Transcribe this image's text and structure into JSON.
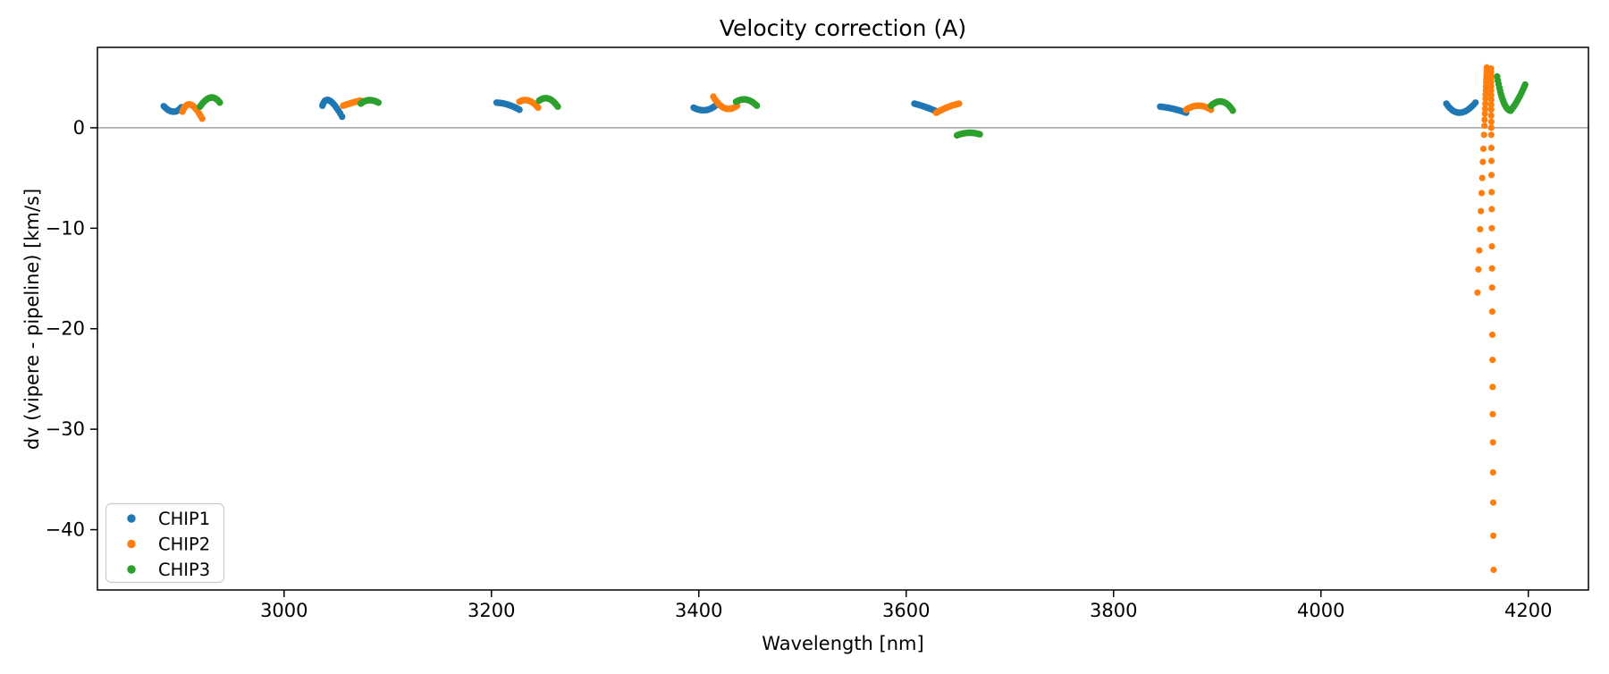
{
  "figure": {
    "title": "Velocity correction (A)",
    "xlabel": "Wavelength [nm]",
    "ylabel": "dv (vipere - pipeline) [km/s]"
  },
  "chart_data": {
    "type": "scatter",
    "title": "Velocity correction (A)",
    "xlabel": "Wavelength [nm]",
    "ylabel": "dv (vipere - pipeline) [km/s]",
    "xlim": [
      2820,
      4258
    ],
    "ylim": [
      -46.0,
      8.0
    ],
    "xticks": [
      3000,
      3200,
      3400,
      3600,
      3800,
      4000,
      4200
    ],
    "yticks": [
      0,
      -10,
      -20,
      -30,
      -40
    ],
    "grid": false,
    "zero_line": {
      "y": 0,
      "color": "#808080"
    },
    "legend": {
      "position": "lower left",
      "entries": [
        {
          "label": "CHIP1",
          "color": "#1f77b4"
        },
        {
          "label": "CHIP2",
          "color": "#ff7f0e"
        },
        {
          "label": "CHIP3",
          "color": "#2ca02c"
        }
      ]
    },
    "series": [
      {
        "name": "CHIP1",
        "color": "#1f77b4",
        "segments": [
          [
            [
              2884,
              2.15
            ],
            [
              2893,
              1.6
            ],
            [
              2901,
              2.05
            ]
          ],
          [
            [
              3037,
              2.2
            ],
            [
              3044,
              2.7
            ],
            [
              3056,
              1.1
            ]
          ],
          [
            [
              3205,
              2.5
            ],
            [
              3216,
              2.3
            ],
            [
              3227,
              1.8
            ]
          ],
          [
            [
              3395,
              2.0
            ],
            [
              3406,
              1.75
            ],
            [
              3416,
              2.2
            ]
          ],
          [
            [
              3608,
              2.4
            ],
            [
              3619,
              2.05
            ],
            [
              3630,
              1.6
            ]
          ],
          [
            [
              3845,
              2.1
            ],
            [
              3857,
              1.9
            ],
            [
              3870,
              1.5
            ]
          ],
          [
            [
              4121,
              2.4
            ],
            [
              4134,
              1.5
            ],
            [
              4149,
              2.5
            ]
          ]
        ],
        "spike_points": []
      },
      {
        "name": "CHIP2",
        "color": "#ff7f0e",
        "segments": [
          [
            [
              2902,
              1.6
            ],
            [
              2910,
              2.3
            ],
            [
              2921,
              0.9
            ]
          ],
          [
            [
              3057,
              2.2
            ],
            [
              3066,
              2.5
            ],
            [
              3074,
              2.7
            ]
          ],
          [
            [
              3227,
              2.6
            ],
            [
              3236,
              2.7
            ],
            [
              3245,
              2.0
            ]
          ],
          [
            [
              3414,
              3.1
            ],
            [
              3425,
              1.95
            ],
            [
              3437,
              2.2
            ]
          ],
          [
            [
              3629,
              1.5
            ],
            [
              3640,
              2.05
            ],
            [
              3651,
              2.4
            ]
          ],
          [
            [
              3870,
              1.8
            ],
            [
              3882,
              2.2
            ],
            [
              3894,
              1.8
            ]
          ]
        ],
        "spike_points": [
          [
            4160.0,
            6.0
          ],
          [
            4159.9,
            5.7
          ],
          [
            4159.8,
            5.4
          ],
          [
            4159.6,
            5.1
          ],
          [
            4159.5,
            4.8
          ],
          [
            4159.4,
            4.5
          ],
          [
            4159.2,
            4.1
          ],
          [
            4159.1,
            3.7
          ],
          [
            4158.9,
            3.3
          ],
          [
            4158.8,
            2.9
          ],
          [
            4158.6,
            2.4
          ],
          [
            4158.4,
            1.9
          ],
          [
            4158.2,
            1.4
          ],
          [
            4157.9,
            0.8
          ],
          [
            4157.7,
            0.2
          ],
          [
            4157.3,
            -0.7
          ],
          [
            4156.7,
            -2.1
          ],
          [
            4156.2,
            -3.4
          ],
          [
            4155.6,
            -5.0
          ],
          [
            4155.0,
            -6.5
          ],
          [
            4154.3,
            -8.3
          ],
          [
            4153.5,
            -10.1
          ],
          [
            4152.7,
            -12.2
          ],
          [
            4151.9,
            -14.1
          ],
          [
            4151.0,
            -16.4
          ],
          [
            4164.0,
            5.9
          ],
          [
            4164.0,
            5.55
          ],
          [
            4164.0,
            5.2
          ],
          [
            4164.1,
            4.85
          ],
          [
            4164.1,
            4.5
          ],
          [
            4164.1,
            4.1
          ],
          [
            4164.1,
            3.7
          ],
          [
            4164.1,
            3.25
          ],
          [
            4164.2,
            2.8
          ],
          [
            4164.2,
            2.3
          ],
          [
            4164.2,
            1.8
          ],
          [
            4164.2,
            1.2
          ],
          [
            4164.3,
            0.6
          ],
          [
            4164.3,
            0.0
          ],
          [
            4164.3,
            -0.7
          ],
          [
            4164.4,
            -2.0
          ],
          [
            4164.5,
            -3.3
          ],
          [
            4164.5,
            -4.7
          ],
          [
            4164.6,
            -6.4
          ],
          [
            4164.7,
            -8.1
          ],
          [
            4164.8,
            -10.0
          ],
          [
            4164.9,
            -11.8
          ],
          [
            4165.0,
            -14.0
          ],
          [
            4165.1,
            -15.9
          ],
          [
            4165.2,
            -18.3
          ],
          [
            4165.3,
            -20.6
          ],
          [
            4165.5,
            -23.1
          ],
          [
            4165.6,
            -25.8
          ],
          [
            4165.7,
            -28.5
          ],
          [
            4165.9,
            -31.3
          ],
          [
            4166.0,
            -34.3
          ],
          [
            4166.2,
            -37.3
          ],
          [
            4166.3,
            -40.6
          ],
          [
            4166.5,
            -44.0
          ]
        ]
      },
      {
        "name": "CHIP3",
        "color": "#2ca02c",
        "segments": [
          [
            [
              2919,
              2.1
            ],
            [
              2929,
              3.0
            ],
            [
              2938,
              2.5
            ]
          ],
          [
            [
              3074,
              2.4
            ],
            [
              3082,
              2.75
            ],
            [
              3091,
              2.5
            ]
          ],
          [
            [
              3246,
              2.7
            ],
            [
              3255,
              2.9
            ],
            [
              3264,
              2.1
            ]
          ],
          [
            [
              3436,
              2.6
            ],
            [
              3446,
              2.8
            ],
            [
              3456,
              2.2
            ]
          ],
          [
            [
              3649,
              -0.75
            ],
            [
              3660,
              -0.5
            ],
            [
              3671,
              -0.65
            ]
          ],
          [
            [
              3894,
              2.2
            ],
            [
              3905,
              2.6
            ],
            [
              3915,
              1.7
            ]
          ],
          [
            [
              4170,
              5.1
            ],
            [
              4176,
              2.6
            ],
            [
              4183,
              1.7
            ]
          ],
          [
            [
              4183,
              1.7
            ],
            [
              4190,
              2.8
            ],
            [
              4197,
              4.3
            ]
          ]
        ],
        "spike_points": []
      }
    ]
  },
  "colors": {
    "axis": "#000000",
    "zero_line": "#808080",
    "background": "#ffffff",
    "legend_border": "#cccccc"
  }
}
